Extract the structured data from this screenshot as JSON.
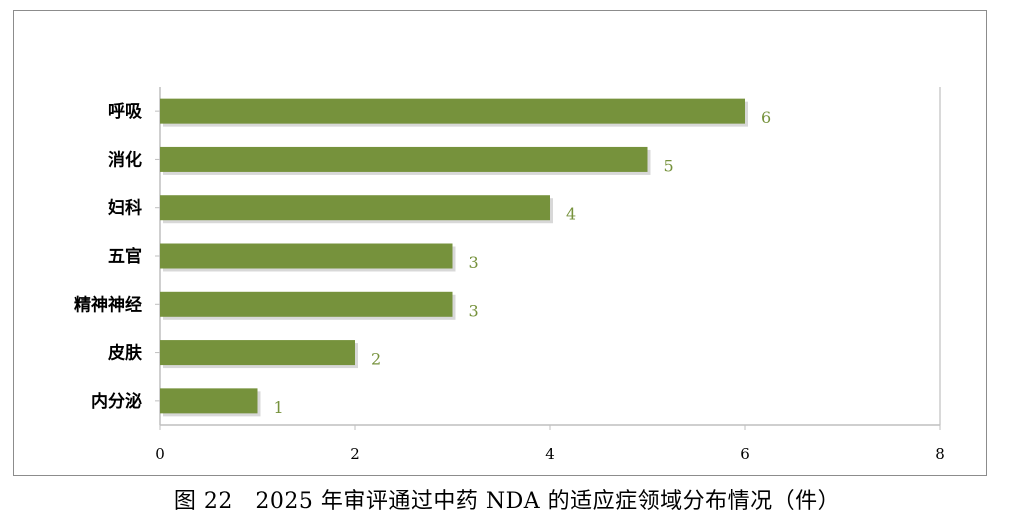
{
  "caption": "图 22   2025 年审评通过中药 NDA 的适应症领域分布情况（件）",
  "colors": {
    "bar": "#76923c",
    "label": "#76923c",
    "axis": "#bfbfbf"
  },
  "chart_data": {
    "type": "bar",
    "orientation": "horizontal",
    "categories": [
      "呼吸",
      "消化",
      "妇科",
      "五官",
      "精神神经",
      "皮肤",
      "内分泌"
    ],
    "values": [
      6,
      5,
      4,
      3,
      3,
      2,
      1
    ],
    "data_labels": [
      "6",
      "5",
      "4",
      "3",
      "3",
      "2",
      "1"
    ],
    "xlim": [
      0,
      8
    ],
    "x_ticks": [
      0,
      2,
      4,
      6,
      8
    ],
    "x_tick_labels": [
      "0",
      "2",
      "4",
      "6",
      "8"
    ],
    "grid": false,
    "legend": "none"
  }
}
